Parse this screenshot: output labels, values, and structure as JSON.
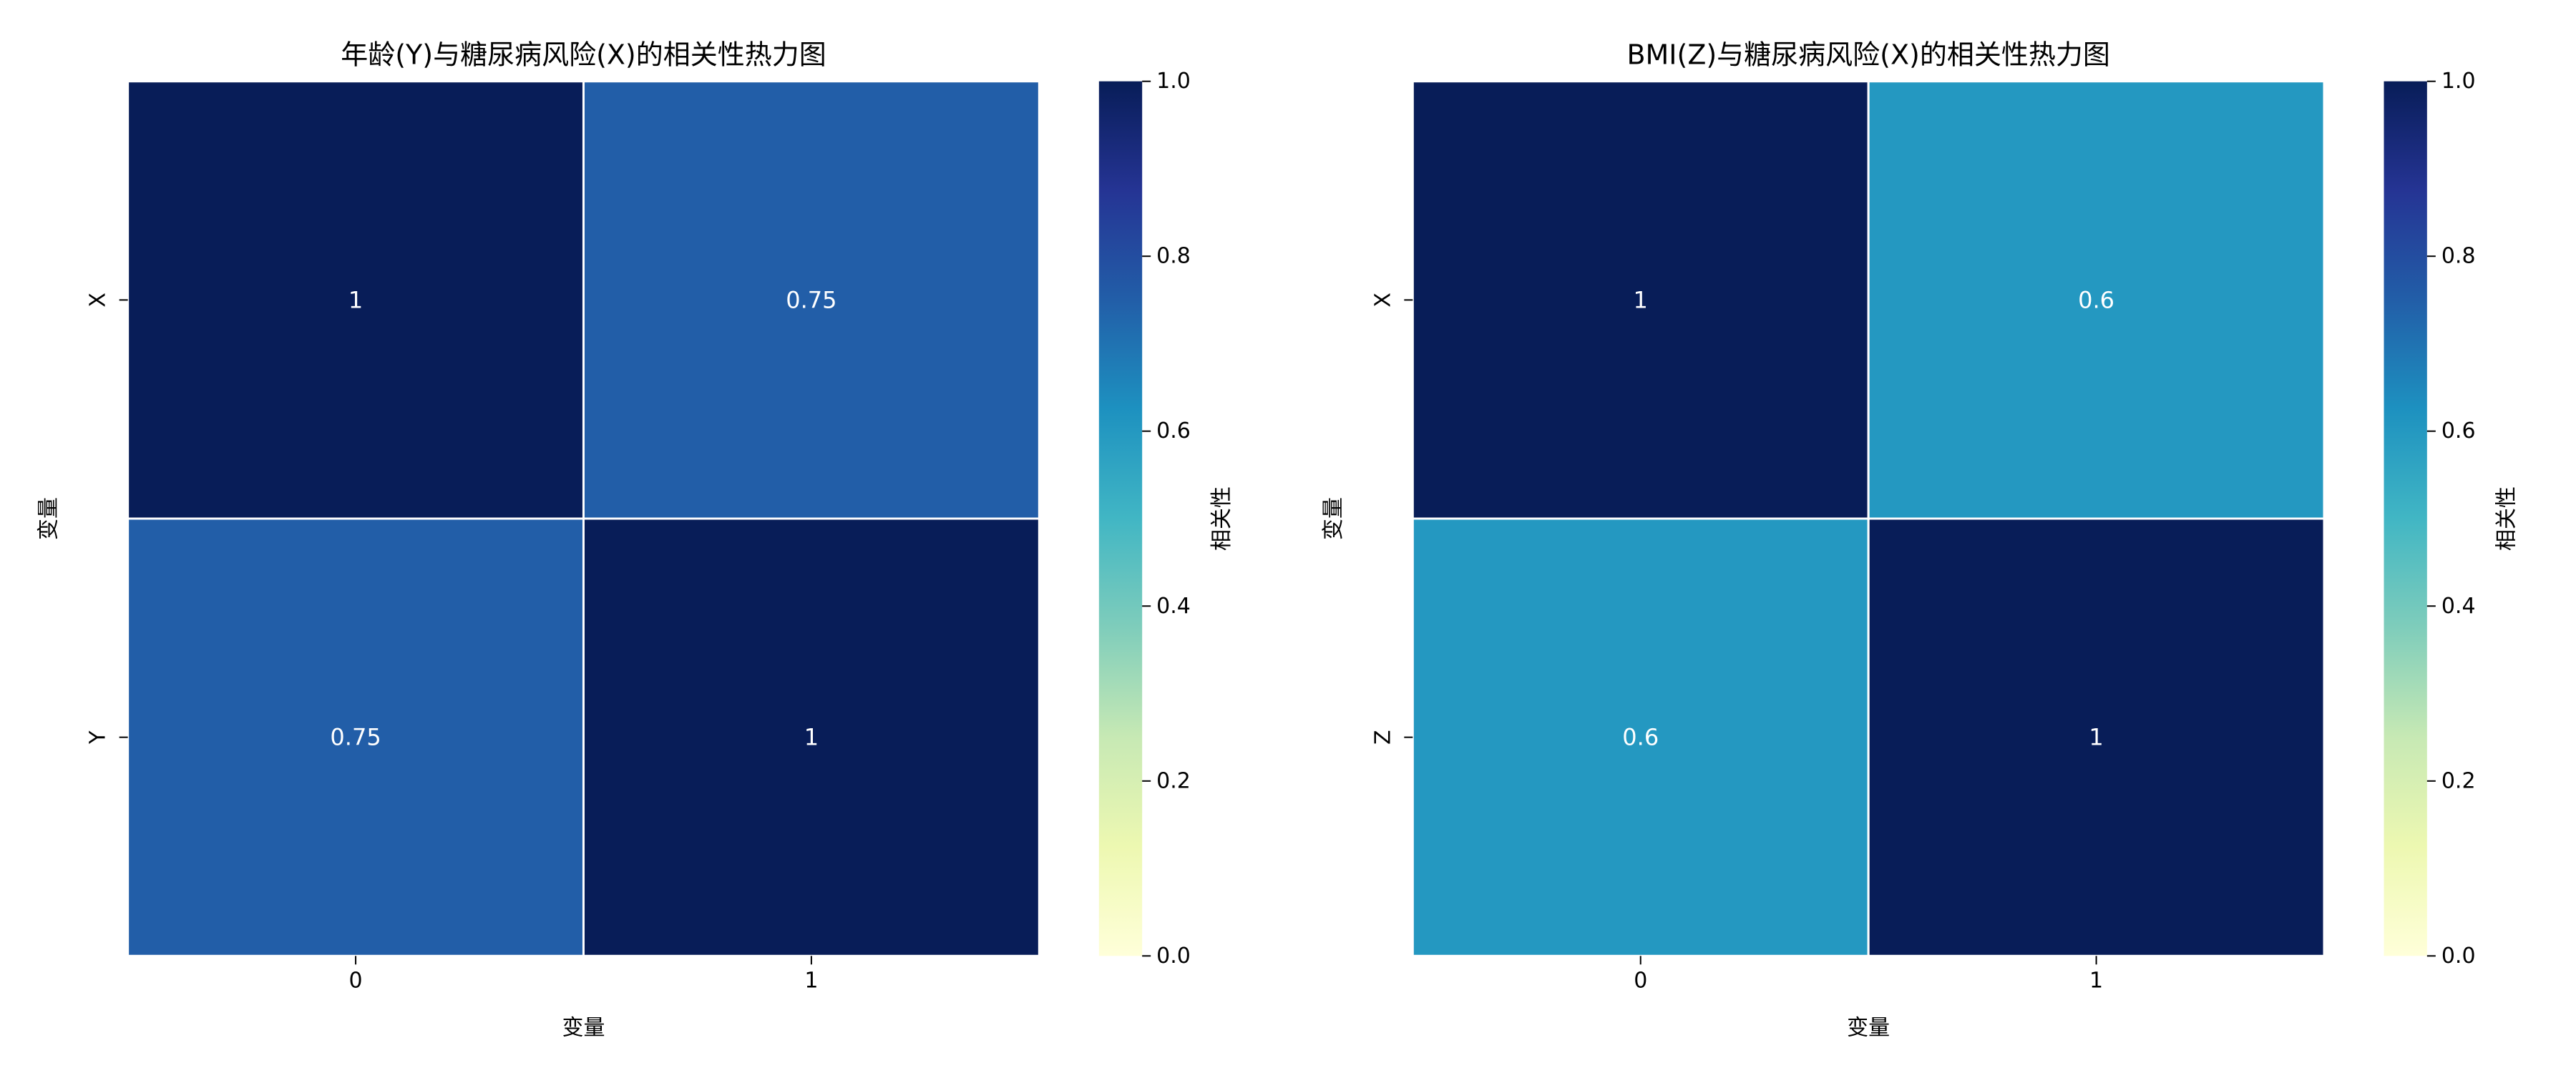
{
  "chart_data": [
    {
      "type": "heatmap",
      "title": "年龄(Y)与糖尿病风险(X)的相关性热力图",
      "xlabel": "变量",
      "ylabel": "变量",
      "x_ticklabels": [
        "0",
        "1"
      ],
      "y_ticklabels": [
        "X",
        "Y"
      ],
      "values": [
        [
          1,
          0.75
        ],
        [
          0.75,
          1
        ]
      ],
      "cell_labels": [
        [
          "1",
          "0.75"
        ],
        [
          "0.75",
          "1"
        ]
      ],
      "colorbar": {
        "label": "相关性",
        "range": [
          0,
          1
        ],
        "ticks": [
          "0.0",
          "0.2",
          "0.4",
          "0.6",
          "0.8",
          "1.0"
        ],
        "colormap": "YlGnBu"
      },
      "grid": false
    },
    {
      "type": "heatmap",
      "title": "BMI(Z)与糖尿病风险(X)的相关性热力图",
      "xlabel": "变量",
      "ylabel": "变量",
      "x_ticklabels": [
        "0",
        "1"
      ],
      "y_ticklabels": [
        "X",
        "Z"
      ],
      "values": [
        [
          1,
          0.6
        ],
        [
          0.6,
          1
        ]
      ],
      "cell_labels": [
        [
          "1",
          "0.6"
        ],
        [
          "0.6",
          "1"
        ]
      ],
      "colorbar": {
        "label": "相关性",
        "range": [
          0,
          1
        ],
        "ticks": [
          "0.0",
          "0.2",
          "0.4",
          "0.6",
          "0.8",
          "1.0"
        ],
        "colormap": "YlGnBu"
      },
      "grid": false
    }
  ],
  "colors": {
    "cell_separator": "#ffffff",
    "axis_text": "#000000",
    "cell_text": "#ffffff",
    "colormap_stops": [
      "#ffffd9",
      "#edf8b1",
      "#c7e9b4",
      "#7fcdbb",
      "#41b6c4",
      "#1d91c0",
      "#225ea8",
      "#253494",
      "#081d58"
    ]
  }
}
